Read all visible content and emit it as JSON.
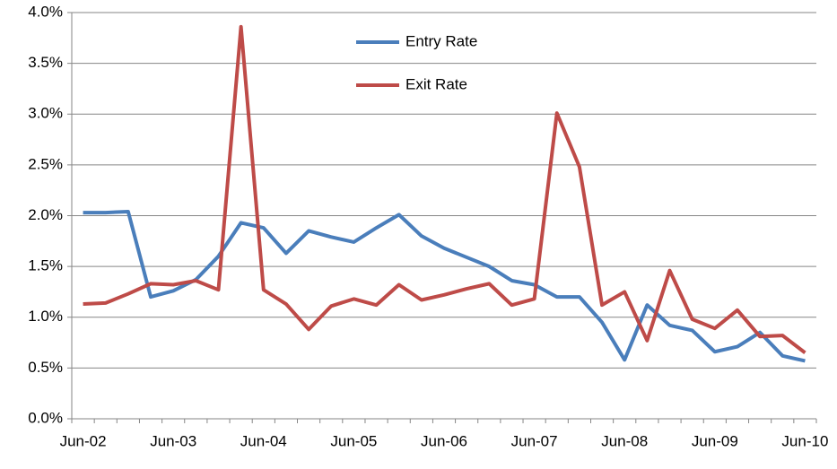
{
  "chart_data": {
    "type": "line",
    "categories": [
      "Jun-02",
      null,
      null,
      null,
      "Jun-03",
      null,
      null,
      null,
      "Jun-04",
      null,
      null,
      null,
      "Jun-05",
      null,
      null,
      null,
      "Jun-06",
      null,
      null,
      null,
      "Jun-07",
      null,
      null,
      null,
      "Jun-08",
      null,
      null,
      null,
      "Jun-09",
      null,
      null,
      null,
      "Jun-10"
    ],
    "series": [
      {
        "name": "Entry Rate",
        "color": "#4a7ebb",
        "values": [
          2.03,
          2.03,
          2.04,
          1.2,
          1.26,
          1.37,
          1.6,
          1.93,
          1.88,
          1.63,
          1.85,
          1.79,
          1.74,
          1.88,
          2.01,
          1.8,
          1.68,
          1.59,
          1.5,
          1.36,
          1.32,
          1.2,
          1.2,
          0.95,
          0.58,
          1.12,
          0.92,
          0.87,
          0.66,
          0.71,
          0.85,
          0.62,
          0.57
        ]
      },
      {
        "name": "Exit Rate",
        "color": "#be4b48",
        "values": [
          1.13,
          1.14,
          1.23,
          1.33,
          1.32,
          1.36,
          1.27,
          3.86,
          1.27,
          1.13,
          0.88,
          1.11,
          1.18,
          1.12,
          1.32,
          1.17,
          1.22,
          1.28,
          1.33,
          1.12,
          1.18,
          3.01,
          2.48,
          1.12,
          1.25,
          0.77,
          1.46,
          0.98,
          0.89,
          1.07,
          0.81,
          0.82,
          0.65
        ]
      }
    ],
    "ylim": [
      0,
      4
    ],
    "yticks": [
      {
        "value": 0,
        "label": "0.0%"
      },
      {
        "value": 0.5,
        "label": "0.5%"
      },
      {
        "value": 1,
        "label": "1.0%"
      },
      {
        "value": 1.5,
        "label": "1.5%"
      },
      {
        "value": 2,
        "label": "2.0%"
      },
      {
        "value": 2.5,
        "label": "2.5%"
      },
      {
        "value": 3,
        "label": "3.0%"
      },
      {
        "value": 3.5,
        "label": "3.5%"
      },
      {
        "value": 4,
        "label": "4.0%"
      }
    ],
    "grid": true
  }
}
